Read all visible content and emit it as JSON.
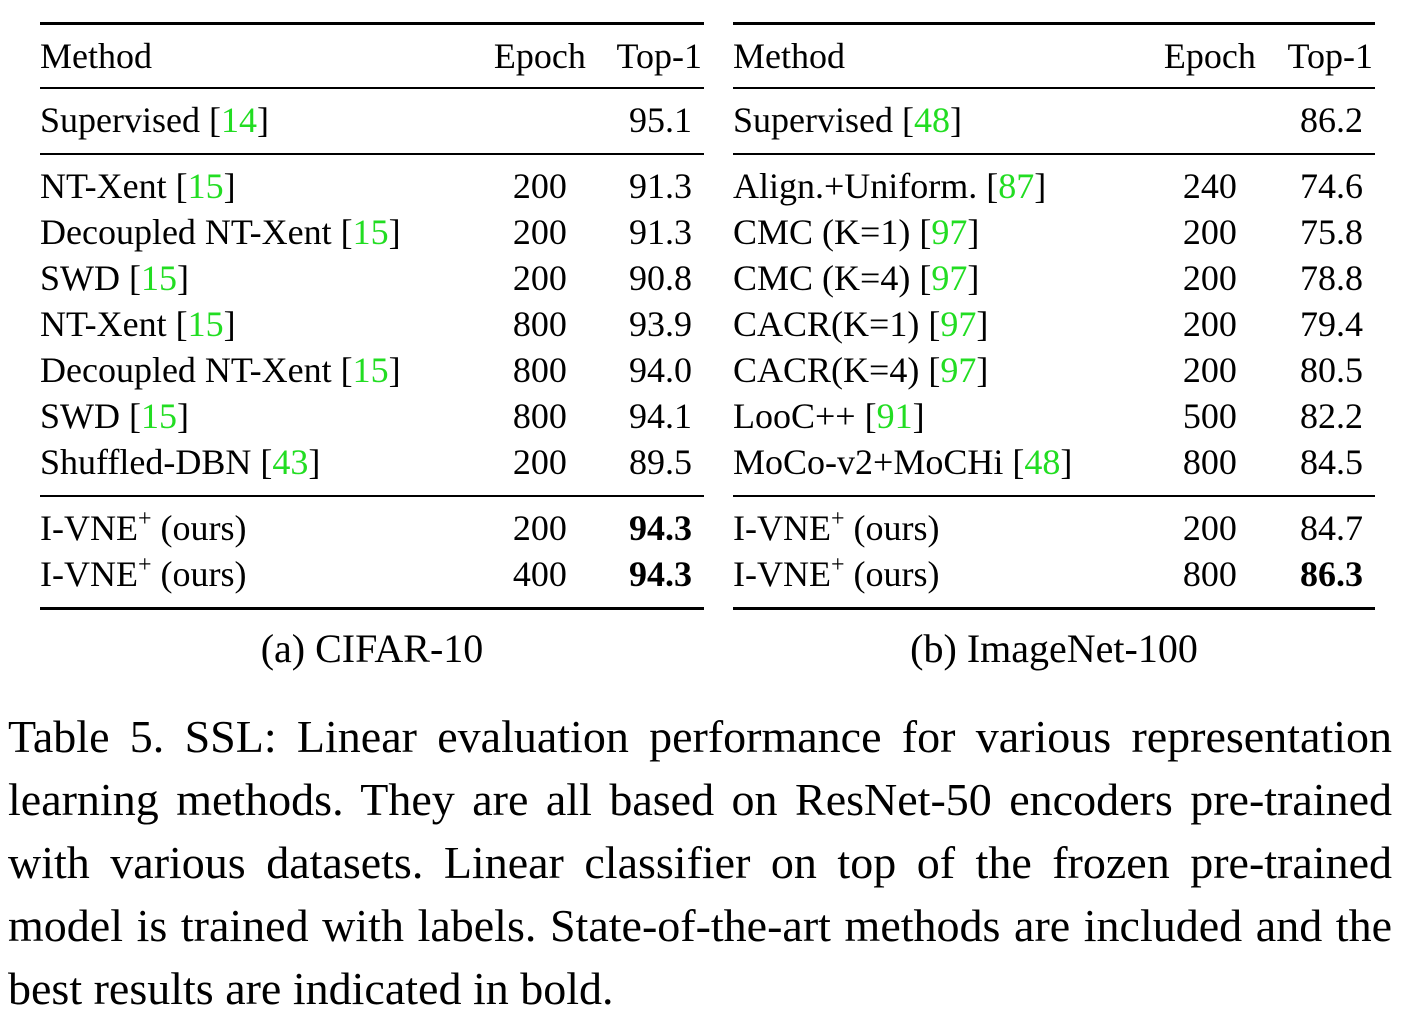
{
  "tables": [
    {
      "caption": "(a) CIFAR-10",
      "headers": {
        "method": "Method",
        "epoch": "Epoch",
        "top1": "Top-1"
      },
      "groups": [
        [
          {
            "method": "Supervised",
            "ref": "14",
            "epoch": "",
            "top1": "95.1",
            "bold": false
          }
        ],
        [
          {
            "method": "NT-Xent",
            "ref": "15",
            "epoch": "200",
            "top1": "91.3",
            "bold": false
          },
          {
            "method": "Decoupled NT-Xent",
            "ref": "15",
            "epoch": "200",
            "top1": "91.3",
            "bold": false
          },
          {
            "method": "SWD",
            "ref": "15",
            "epoch": "200",
            "top1": "90.8",
            "bold": false
          },
          {
            "method": "NT-Xent",
            "ref": "15",
            "epoch": "800",
            "top1": "93.9",
            "bold": false
          },
          {
            "method": "Decoupled NT-Xent",
            "ref": "15",
            "epoch": "800",
            "top1": "94.0",
            "bold": false
          },
          {
            "method": "SWD",
            "ref": "15",
            "epoch": "800",
            "top1": "94.1",
            "bold": false
          },
          {
            "method": "Shuffled-DBN",
            "ref": "43",
            "epoch": "200",
            "top1": "89.5",
            "bold": false
          }
        ],
        [
          {
            "method": "I-VNE",
            "sup": "+",
            "suffix": "(ours)",
            "ref": "",
            "epoch": "200",
            "top1": "94.3",
            "bold": true
          },
          {
            "method": "I-VNE",
            "sup": "+",
            "suffix": "(ours)",
            "ref": "",
            "epoch": "400",
            "top1": "94.3",
            "bold": true
          }
        ]
      ]
    },
    {
      "caption": "(b) ImageNet-100",
      "headers": {
        "method": "Method",
        "epoch": "Epoch",
        "top1": "Top-1"
      },
      "groups": [
        [
          {
            "method": "Supervised",
            "ref": "48",
            "epoch": "",
            "top1": "86.2",
            "bold": false
          }
        ],
        [
          {
            "method": "Align.+Uniform.",
            "ref": "87",
            "epoch": "240",
            "top1": "74.6",
            "bold": false
          },
          {
            "method": "CMC (K=1)",
            "ref": "97",
            "epoch": "200",
            "top1": "75.8",
            "bold": false
          },
          {
            "method": "CMC (K=4)",
            "ref": "97",
            "epoch": "200",
            "top1": "78.8",
            "bold": false
          },
          {
            "method": "CACR(K=1)",
            "ref": "97",
            "epoch": "200",
            "top1": "79.4",
            "bold": false
          },
          {
            "method": "CACR(K=4)",
            "ref": "97",
            "epoch": "200",
            "top1": "80.5",
            "bold": false
          },
          {
            "method": "LooC++",
            "ref": "91",
            "epoch": "500",
            "top1": "82.2",
            "bold": false
          },
          {
            "method": "MoCo-v2+MoCHi",
            "ref": "48",
            "epoch": "800",
            "top1": "84.5",
            "bold": false
          }
        ],
        [
          {
            "method": "I-VNE",
            "sup": "+",
            "suffix": "(ours)",
            "ref": "",
            "epoch": "200",
            "top1": "84.7",
            "bold": false
          },
          {
            "method": "I-VNE",
            "sup": "+",
            "suffix": "(ours)",
            "ref": "",
            "epoch": "800",
            "top1": "86.3",
            "bold": true
          }
        ]
      ]
    }
  ],
  "caption": "Table 5.  SSL: Linear evaluation performance for various representation learning methods. They are all based on ResNet-50 encoders pre-trained with various datasets. Linear classifier on top of the frozen pre-trained model is trained with labels. State-of-the-art methods are included and the best results are indicated in bold.",
  "colors": {
    "reference_link": "#22dd22",
    "text": "#000000"
  }
}
